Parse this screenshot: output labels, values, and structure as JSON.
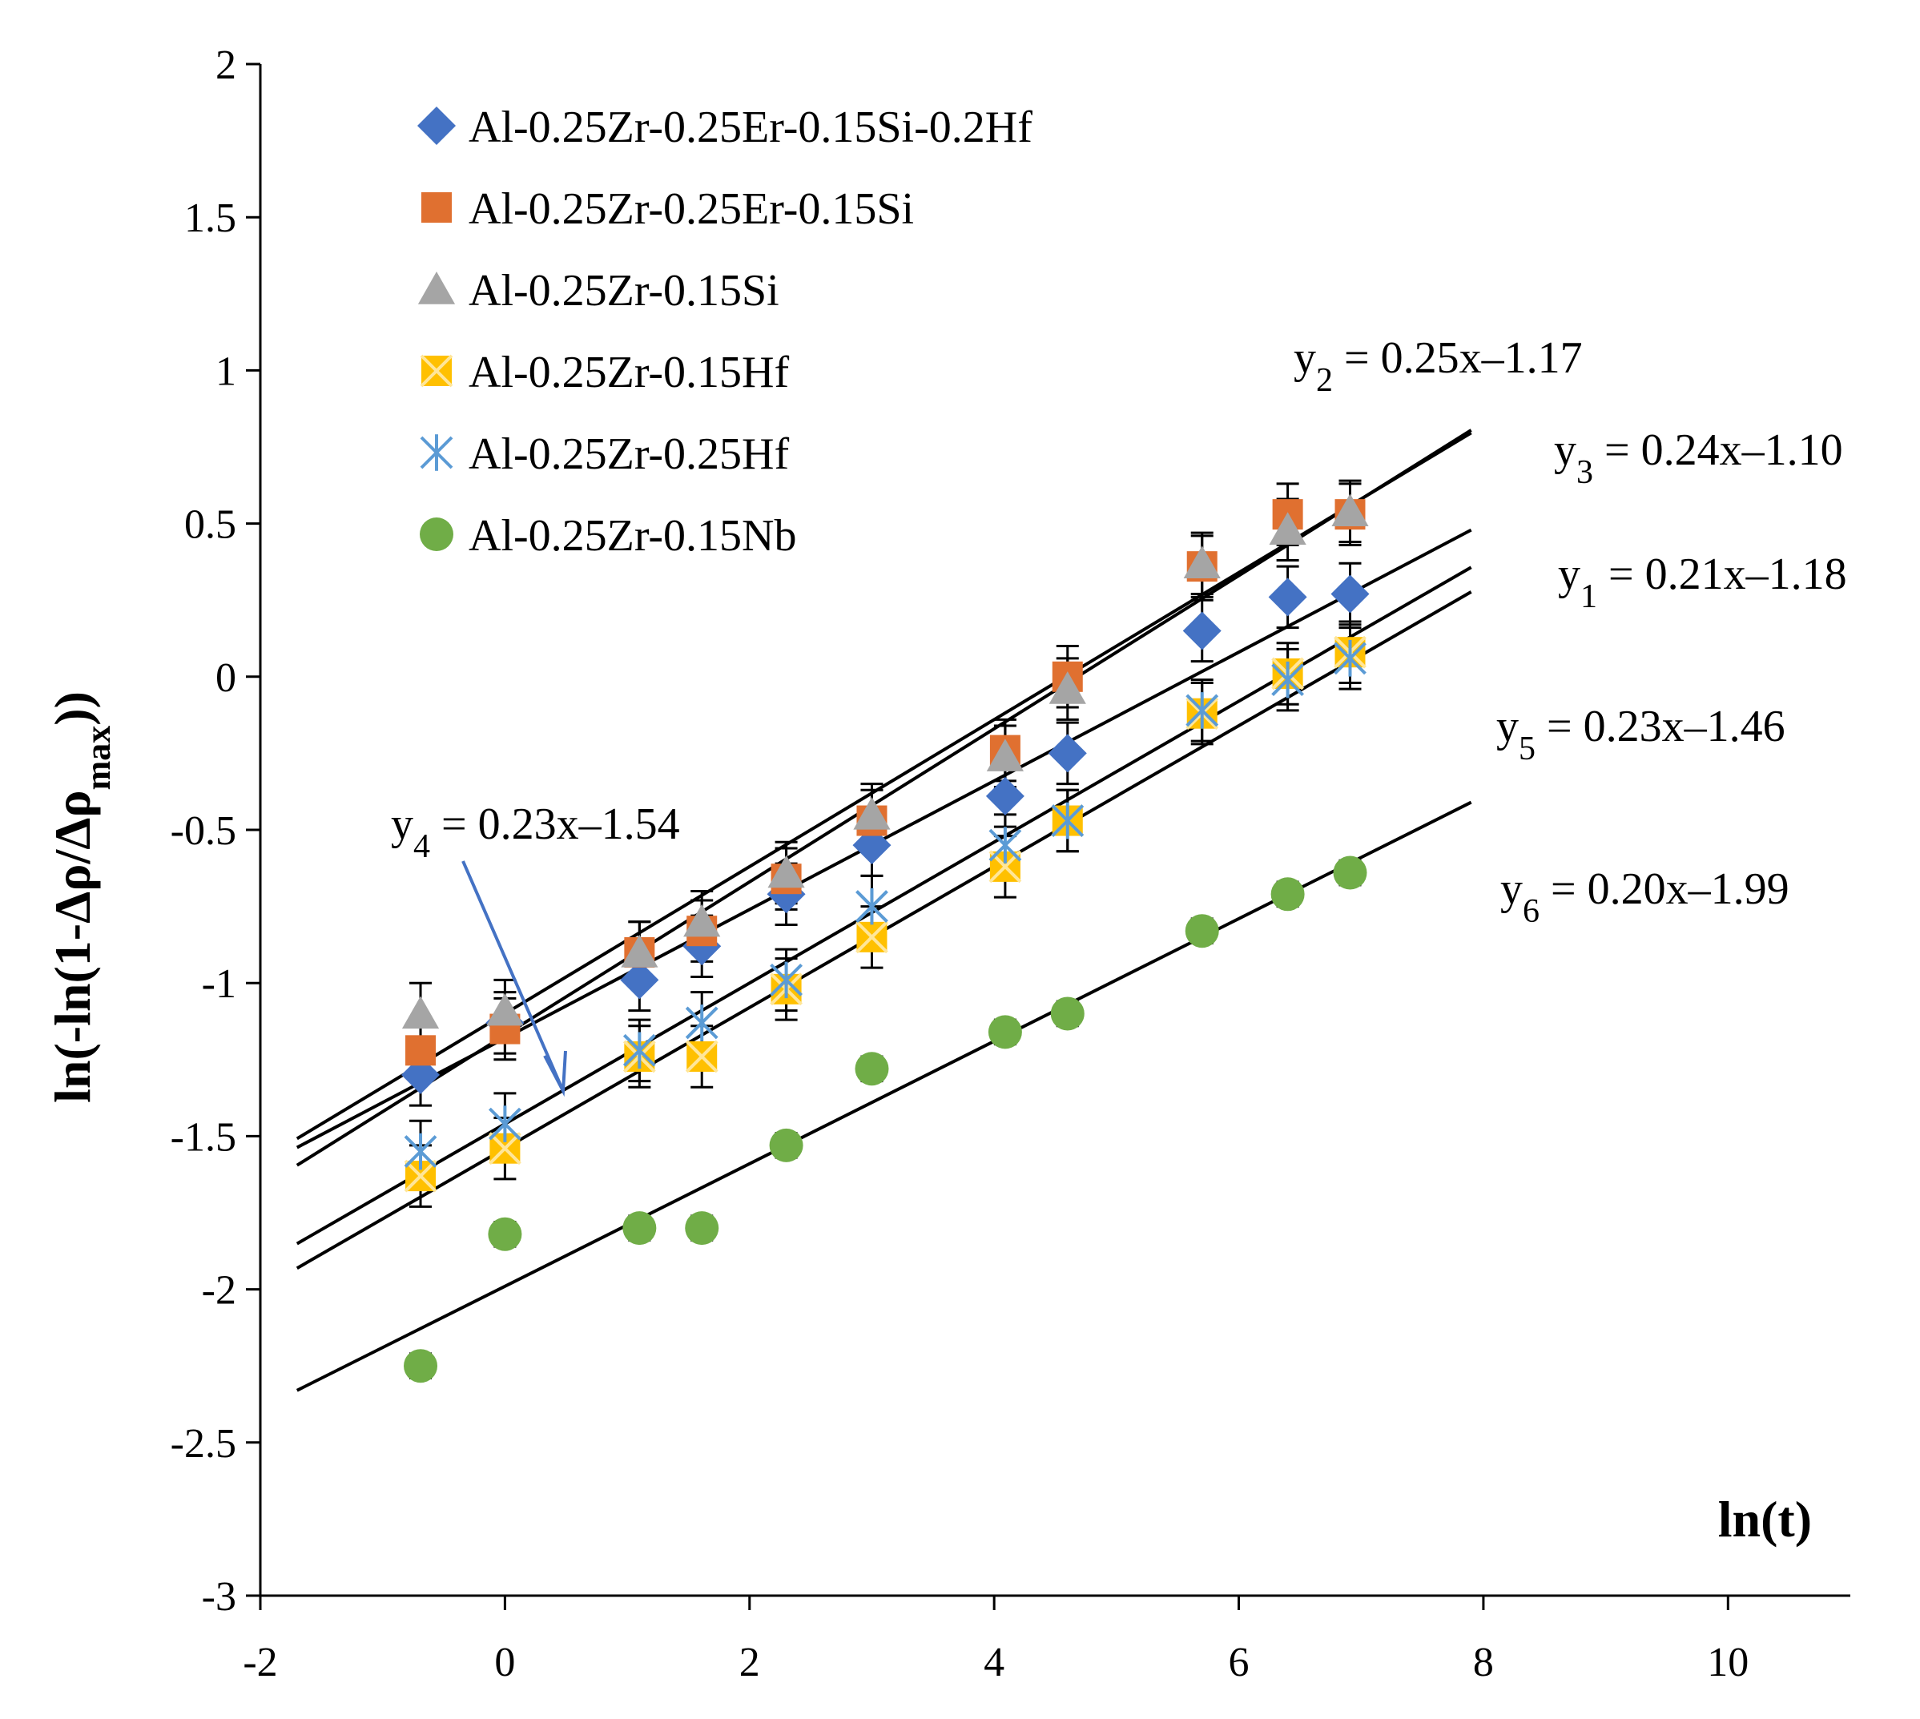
{
  "chart_data": {
    "type": "scatter",
    "title": "",
    "xlabel": "ln(t)",
    "ylabel": "ln(-ln(1-Δρ/Δρmax))",
    "ylabel_parts": {
      "pre": "ln(-ln(1-Δρ/Δρ",
      "sub": "max",
      "post": "))"
    },
    "xlim": [
      -2,
      11
    ],
    "ylim": [
      -3,
      2
    ],
    "xticks": [
      -2,
      0,
      2,
      4,
      6,
      8,
      10
    ],
    "yticks": [
      2,
      1.5,
      1,
      0.5,
      0,
      -0.5,
      -1,
      -1.5,
      -2,
      -2.5,
      -3
    ],
    "ytick_labels": [
      "2",
      "1.5",
      "1",
      "0.5",
      "0",
      "-0.5",
      "-1",
      "-1.5",
      "-2",
      "-2.5",
      "-3"
    ],
    "grid": false,
    "legend_position": "top-left",
    "x": [
      -0.69,
      0,
      1.1,
      1.61,
      2.3,
      3.0,
      4.09,
      4.6,
      5.7,
      6.4,
      6.91
    ],
    "series": [
      {
        "name": "Al-0.25Zr-0.25Er-0.15Si-0.2Hf",
        "marker": "diamond",
        "color": "#4472C4",
        "values": [
          -1.3,
          -1.13,
          -0.99,
          -0.88,
          -0.71,
          -0.55,
          -0.39,
          -0.25,
          0.15,
          0.26,
          0.27
        ],
        "error": 0.1
      },
      {
        "name": "Al-0.25Zr-0.25Er-0.15Si",
        "marker": "square",
        "color": "#E07030",
        "values": [
          -1.22,
          -1.15,
          -0.9,
          -0.83,
          -0.66,
          -0.47,
          -0.24,
          0.0,
          0.36,
          0.53,
          0.53
        ],
        "error": 0.1
      },
      {
        "name": "Al-0.25Zr-0.15Si",
        "marker": "triangle",
        "color": "#A5A5A5",
        "values": [
          -1.1,
          -1.09,
          -0.9,
          -0.8,
          -0.64,
          -0.45,
          -0.26,
          -0.04,
          0.37,
          0.48,
          0.54
        ],
        "error": 0.1
      },
      {
        "name": "Al-0.25Zr-0.15Hf",
        "marker": "xsquare",
        "color": "#FFC000",
        "values": [
          -1.63,
          -1.54,
          -1.24,
          -1.24,
          -1.02,
          -0.85,
          -0.62,
          -0.47,
          -0.12,
          0.01,
          0.08
        ],
        "error": 0.1
      },
      {
        "name": "Al-0.25Zr-0.25Hf",
        "marker": "asterisk",
        "color": "#5B9BD5",
        "values": [
          -1.55,
          -1.46,
          -1.22,
          -1.13,
          -0.99,
          -0.75,
          -0.55,
          -0.47,
          -0.11,
          -0.01,
          0.06
        ],
        "error": 0.1
      },
      {
        "name": "Al-0.25Zr-0.15Nb",
        "marker": "circle",
        "color": "#70AD47",
        "values": [
          -2.25,
          -1.82,
          -1.8,
          -1.8,
          -1.53,
          -1.28,
          -1.16,
          -1.1,
          -0.83,
          -0.71,
          -0.64
        ],
        "error": 0.04
      }
    ],
    "fits": [
      {
        "id": "y1",
        "slope": 0.21,
        "intercept": -1.18,
        "x_range": [
          -1.7,
          7.9
        ],
        "label_var": "y",
        "label_sub": "1",
        "label_rest": " = 0.21x–1.18"
      },
      {
        "id": "y2",
        "slope": 0.25,
        "intercept": -1.17,
        "x_range": [
          -1.7,
          7.9
        ],
        "label_var": "y",
        "label_sub": "2",
        "label_rest": " = 0.25x–1.17"
      },
      {
        "id": "y3",
        "slope": 0.24,
        "intercept": -1.1,
        "x_range": [
          -1.7,
          7.9
        ],
        "label_var": "y",
        "label_sub": "3",
        "label_rest": " = 0.24x–1.10"
      },
      {
        "id": "y4",
        "slope": 0.23,
        "intercept": -1.54,
        "x_range": [
          -1.7,
          7.9
        ],
        "label_var": "y",
        "label_sub": "4",
        "label_rest": " = 0.23x–1.54"
      },
      {
        "id": "y5",
        "slope": 0.23,
        "intercept": -1.46,
        "x_range": [
          -1.7,
          7.9
        ],
        "label_var": "y",
        "label_sub": "5",
        "label_rest": " = 0.23x–1.46"
      },
      {
        "id": "y6",
        "slope": 0.2,
        "intercept": -1.99,
        "x_range": [
          -1.7,
          7.9
        ],
        "label_var": "y",
        "label_sub": "6",
        "label_rest": " = 0.20x–1.99"
      }
    ],
    "annotations": [
      {
        "text": "arrow from y4 label to fit line y4",
        "kind": "arrow",
        "color": "#4472C4"
      }
    ]
  }
}
